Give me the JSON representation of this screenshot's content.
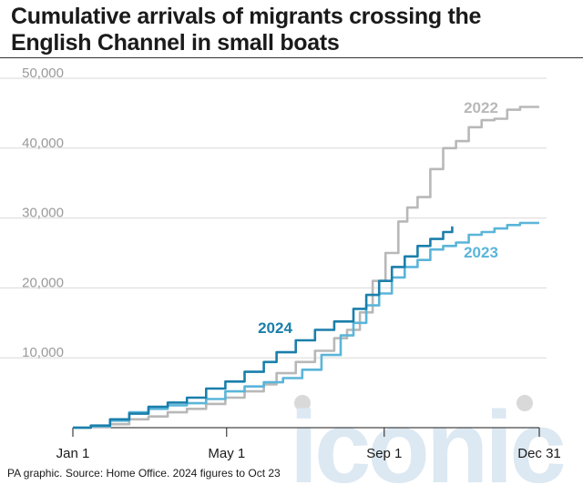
{
  "title": {
    "line1": "Cumulative arrivals of migrants crossing the",
    "line2": "English Channel in small boats"
  },
  "source": "PA graphic. Source: Home Office. 2024 figures to Oct 23",
  "watermark": {
    "text": "iconic",
    "color": "#dce8f2",
    "dot_color": "#d9d9d9"
  },
  "chart_data": {
    "type": "line",
    "title": "Cumulative arrivals of migrants crossing the English Channel in small boats",
    "xlabel": "",
    "ylabel": "",
    "x_unit": "day of year",
    "xlim": [
      1,
      365
    ],
    "ylim": [
      0,
      50000
    ],
    "y_ticks": [
      {
        "value": 10000,
        "label": "10,000"
      },
      {
        "value": 20000,
        "label": "20,000"
      },
      {
        "value": 30000,
        "label": "30,000"
      },
      {
        "value": 40000,
        "label": "40,000"
      },
      {
        "value": 50000,
        "label": "50,000"
      }
    ],
    "x_ticks": [
      {
        "value": 1,
        "label": "Jan 1"
      },
      {
        "value": 121,
        "label": "May 1"
      },
      {
        "value": 244,
        "label": "Sep 1"
      },
      {
        "value": 365,
        "label": "Dec 31"
      }
    ],
    "grid": "horizontal",
    "series": [
      {
        "name": "2022",
        "color": "#b8b8b8",
        "points": [
          [
            1,
            0
          ],
          [
            15,
            120
          ],
          [
            30,
            500
          ],
          [
            45,
            1200
          ],
          [
            60,
            1600
          ],
          [
            75,
            2200
          ],
          [
            90,
            2700
          ],
          [
            105,
            3400
          ],
          [
            120,
            4300
          ],
          [
            135,
            5200
          ],
          [
            150,
            6200
          ],
          [
            160,
            7800
          ],
          [
            175,
            9400
          ],
          [
            190,
            11000
          ],
          [
            205,
            12800
          ],
          [
            215,
            14000
          ],
          [
            225,
            16500
          ],
          [
            235,
            21000
          ],
          [
            245,
            25000
          ],
          [
            255,
            29500
          ],
          [
            262,
            31500
          ],
          [
            270,
            33000
          ],
          [
            280,
            37000
          ],
          [
            290,
            40000
          ],
          [
            300,
            41000
          ],
          [
            310,
            43000
          ],
          [
            320,
            44000
          ],
          [
            330,
            44200
          ],
          [
            340,
            45500
          ],
          [
            350,
            45900
          ],
          [
            365,
            45900
          ]
        ]
      },
      {
        "name": "2023",
        "color": "#5bb5d9",
        "points": [
          [
            1,
            0
          ],
          [
            15,
            200
          ],
          [
            30,
            1000
          ],
          [
            45,
            2200
          ],
          [
            60,
            2700
          ],
          [
            75,
            3200
          ],
          [
            90,
            3500
          ],
          [
            105,
            4100
          ],
          [
            120,
            5200
          ],
          [
            135,
            5900
          ],
          [
            150,
            6500
          ],
          [
            165,
            7100
          ],
          [
            180,
            8300
          ],
          [
            195,
            10400
          ],
          [
            210,
            13200
          ],
          [
            220,
            15000
          ],
          [
            230,
            17500
          ],
          [
            240,
            19200
          ],
          [
            250,
            21500
          ],
          [
            260,
            23000
          ],
          [
            270,
            24000
          ],
          [
            280,
            25500
          ],
          [
            290,
            26000
          ],
          [
            300,
            26500
          ],
          [
            310,
            27600
          ],
          [
            320,
            28000
          ],
          [
            330,
            28500
          ],
          [
            340,
            29000
          ],
          [
            350,
            29300
          ],
          [
            365,
            29300
          ]
        ]
      },
      {
        "name": "2024",
        "color": "#1a7fab",
        "points": [
          [
            1,
            0
          ],
          [
            15,
            300
          ],
          [
            30,
            1200
          ],
          [
            45,
            2000
          ],
          [
            60,
            3000
          ],
          [
            75,
            3600
          ],
          [
            90,
            4300
          ],
          [
            105,
            5600
          ],
          [
            120,
            6600
          ],
          [
            135,
            8000
          ],
          [
            150,
            9400
          ],
          [
            160,
            10800
          ],
          [
            175,
            12500
          ],
          [
            190,
            14000
          ],
          [
            205,
            15200
          ],
          [
            220,
            17000
          ],
          [
            230,
            19000
          ],
          [
            240,
            21000
          ],
          [
            250,
            23000
          ],
          [
            260,
            24500
          ],
          [
            270,
            26000
          ],
          [
            280,
            27000
          ],
          [
            290,
            28000
          ],
          [
            297,
            28800
          ]
        ]
      }
    ]
  }
}
